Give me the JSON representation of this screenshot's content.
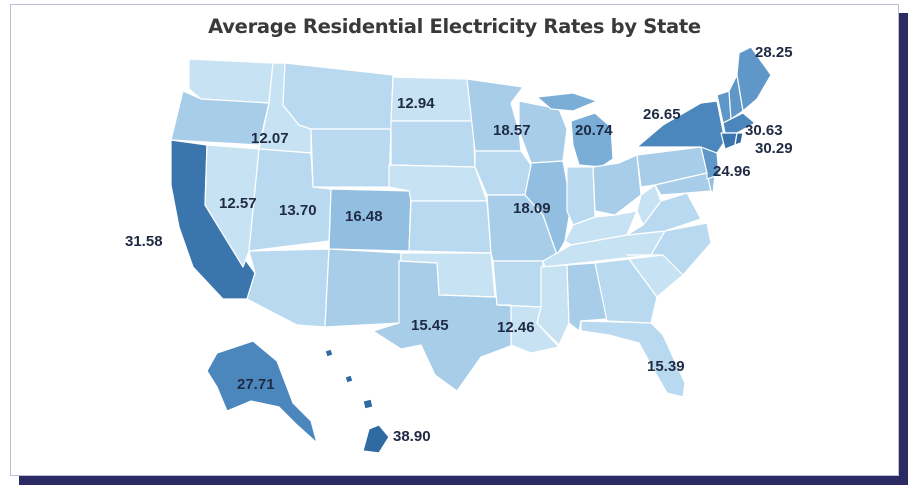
{
  "title": "Average Residential Electricity Rates by State",
  "palette": {
    "c1": "#c7e3f3",
    "c2": "#b8d9ef",
    "c3": "#a7cde9",
    "c4": "#92bfe1",
    "c5": "#7aaed7",
    "c6": "#5e97c8",
    "c7": "#4b87bd",
    "c8": "#3a76ad",
    "c9": "#2f6aa3",
    "border": "#2b2a63"
  },
  "rates": {
    "maine": "28.25",
    "new_york": "26.65",
    "massachusetts": "30.63",
    "connecticut": "30.29",
    "new_jersey": "24.96",
    "north_dakota": "12.94",
    "idaho": "12.07",
    "minnesota": "18.57",
    "michigan": "20.74",
    "nevada": "12.57",
    "utah": "13.70",
    "colorado": "16.48",
    "illinois": "18.09",
    "california": "31.58",
    "texas": "15.45",
    "louisiana": "12.46",
    "florida": "15.39",
    "alaska": "27.71",
    "hawaii": "38.90"
  }
}
